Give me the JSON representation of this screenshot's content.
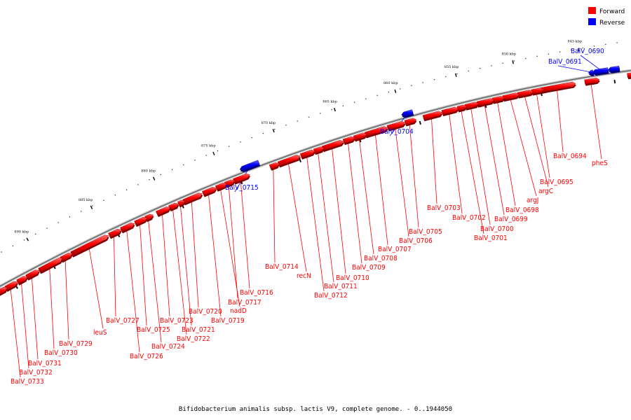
{
  "legend": {
    "forward": {
      "label": "Forward",
      "color": "#ff0000"
    },
    "reverse": {
      "label": "Reverse",
      "color": "#0000ff"
    }
  },
  "caption": "Bifidobacterium animalis subsp. lactis V9, complete genome. - 0..1944050",
  "scale_ticks": [
    "845 kbp",
    "850 kbp",
    "855 kbp",
    "860 kbp",
    "865 kbp",
    "870 kbp",
    "875 kbp",
    "880 kbp",
    "885 kbp",
    "890 kbp"
  ],
  "genes": {
    "forward": [
      "pheS",
      "BalV_0694",
      "BalV_0695",
      "argC",
      "argJ",
      "BalV_0698",
      "BalV_0699",
      "BalV_0700",
      "BalV_0701",
      "BalV_0702",
      "BalV_0703",
      "BalV_0705",
      "BalV_0706",
      "BalV_0707",
      "BalV_0708",
      "BalV_0709",
      "BalV_0710",
      "BalV_0711",
      "BalV_0712",
      "recN",
      "BalV_0714",
      "BalV_0716",
      "BalV_0717",
      "nadD",
      "BalV_0719",
      "BalV_0720",
      "BalV_0721",
      "BalV_0722",
      "BalV_0723",
      "BalV_0724",
      "BalV_0725",
      "BalV_0726",
      "BalV_0727",
      "leuS",
      "BalV_0729",
      "BalV_0730",
      "BalV_0731",
      "BalV_0732",
      "BalV_0733"
    ],
    "reverse": [
      "BalV_0690",
      "BalV_0691",
      "BalV_0704",
      "BalV_0715"
    ]
  }
}
